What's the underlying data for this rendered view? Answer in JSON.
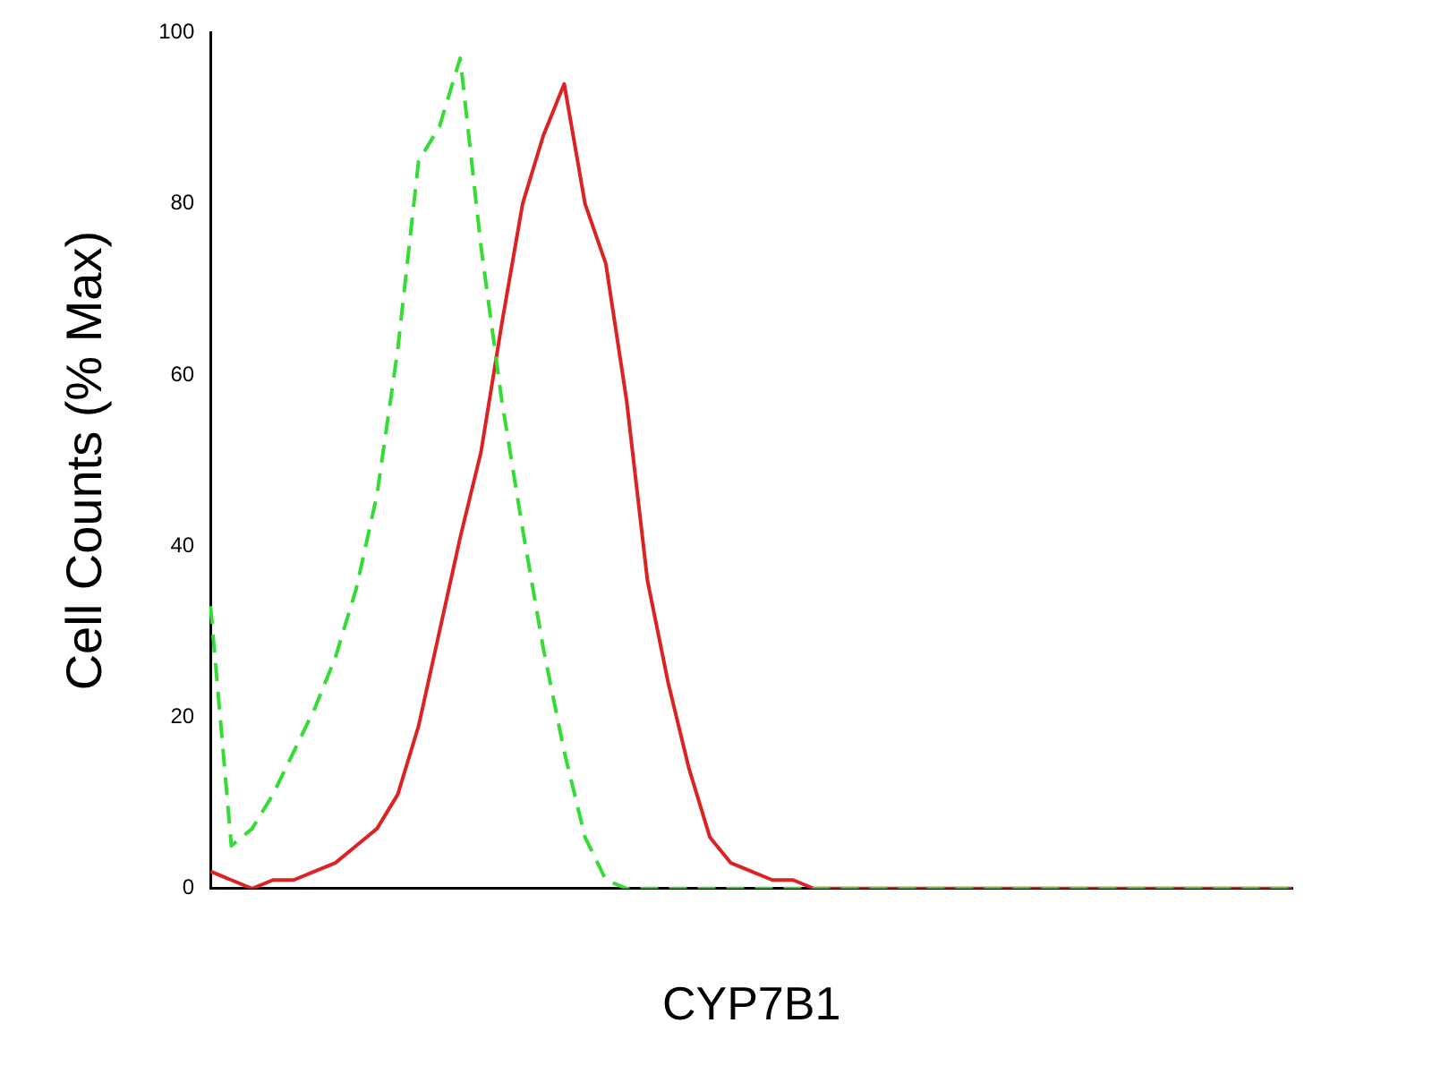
{
  "chart_data": {
    "type": "line",
    "xlabel": "CYP7B1",
    "ylabel": "Cell Counts (% Max)",
    "categories": [
      null,
      null,
      null,
      null,
      null,
      null,
      null,
      null,
      null,
      null,
      null,
      null,
      null,
      null,
      null,
      null,
      null,
      null,
      null,
      null,
      null,
      null,
      null,
      null,
      null,
      null,
      null,
      null,
      null,
      null,
      null,
      null,
      null,
      null,
      null,
      null,
      null,
      null,
      null,
      null,
      null,
      null,
      null,
      null,
      null,
      null,
      null,
      null,
      null,
      null,
      null,
      null,
      null
    ],
    "series": [
      {
        "color": "#33dd33",
        "line_style": "dashed",
        "values": [
          33,
          5,
          7,
          11,
          16,
          21,
          27,
          35,
          46,
          63,
          85,
          89,
          97,
          75,
          57,
          42,
          28,
          16,
          6,
          1,
          0,
          0,
          0,
          0,
          0,
          0,
          0,
          0,
          0,
          0,
          0,
          0,
          0,
          0,
          0,
          0,
          0,
          0,
          0,
          0,
          0,
          0,
          0,
          0,
          0,
          0,
          0,
          0,
          0,
          0,
          0,
          0,
          0
        ]
      },
      {
        "color": "#dd2222",
        "line_style": "solid",
        "values": [
          2,
          1,
          0,
          1,
          1,
          2,
          3,
          5,
          7,
          11,
          19,
          30,
          41,
          51,
          66,
          80,
          88,
          94,
          80,
          73,
          57,
          36,
          24,
          14,
          6,
          3,
          2,
          1,
          1,
          0,
          0,
          0,
          0,
          0,
          0,
          0,
          0,
          0,
          0,
          0,
          0,
          0,
          0,
          0,
          0,
          0,
          0,
          0,
          0,
          0,
          0,
          0,
          0
        ]
      }
    ],
    "ylim": [
      0,
      100
    ],
    "yticks": [
      0,
      20,
      40,
      60,
      80,
      100
    ],
    "grid": false,
    "legend": false,
    "marker": "none"
  }
}
